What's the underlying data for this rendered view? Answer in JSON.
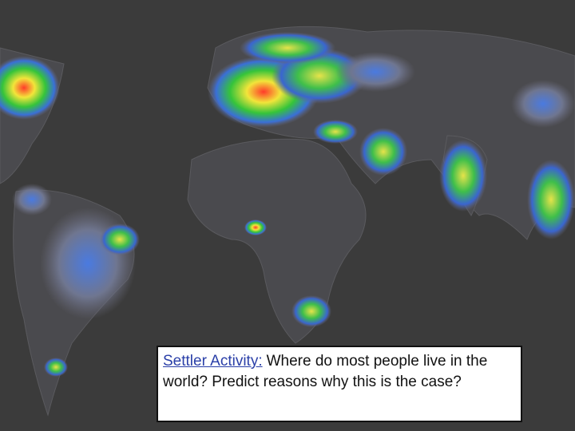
{
  "text_box": {
    "link": "Settler Activity:",
    "text": "Where do most people live in the world? Predict reasons why this is the case?"
  }
}
